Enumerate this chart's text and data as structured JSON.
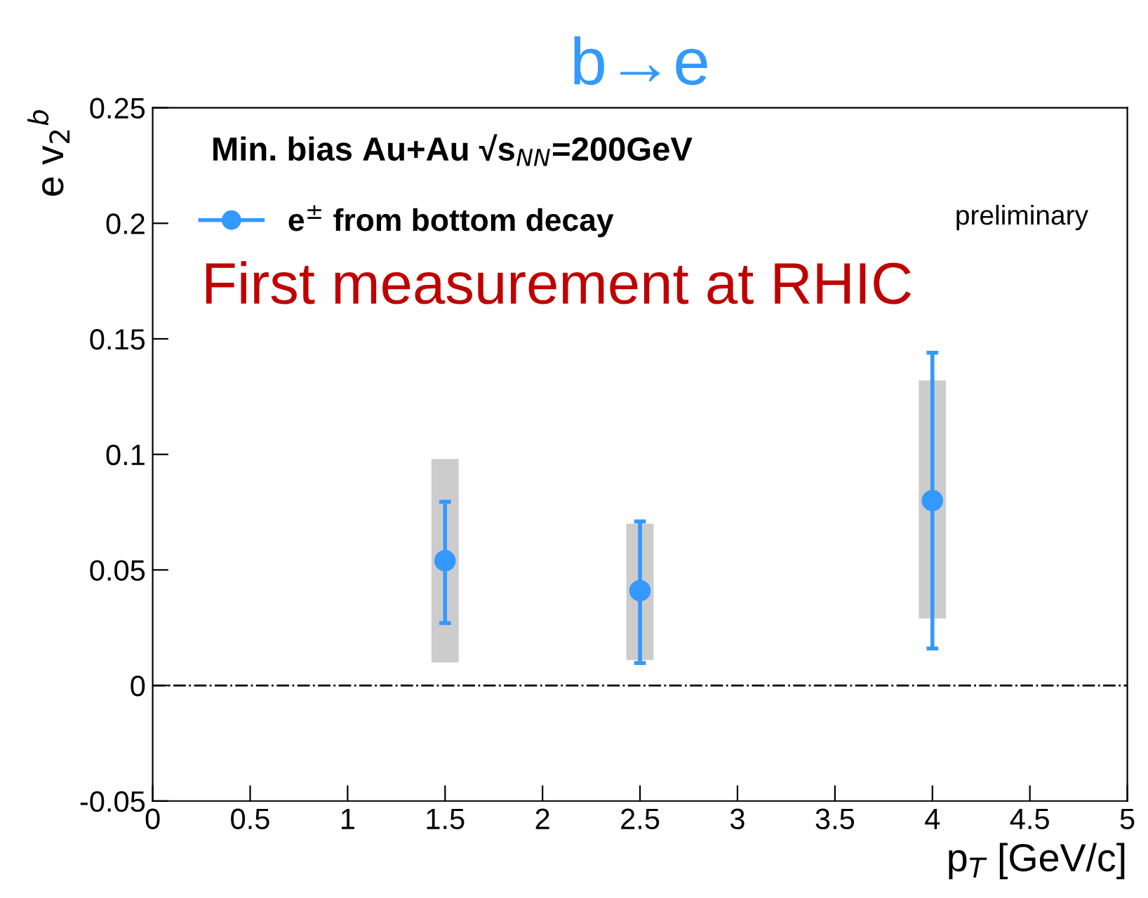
{
  "chart_data": {
    "type": "scatter",
    "title": "b→e",
    "xlabel": "p$_{T}$ [GeV/c]",
    "ylabel": "e v$_{2}$$^{b}$",
    "series": [
      {
        "type": "bar",
        "color": "#cccccc",
        "x": [
          1.5,
          2.5,
          4
        ],
        "base": [
          0.01,
          0.011,
          0.029
        ],
        "values": [
          0.088,
          0.059,
          0.103
        ]
      },
      {
        "name": "e$^{±}$ from bottom decay",
        "color": "#3399ff",
        "x": [
          1.5,
          2.5,
          4
        ],
        "values": [
          0.054,
          0.041,
          0.08
        ],
        "errors": [
          [
            0.027,
            0.0795
          ],
          [
            0.0097,
            0.071
          ],
          [
            0.016,
            0.144
          ]
        ]
      }
    ],
    "xlim": [
      0,
      5
    ],
    "xticks": [
      0,
      0.5,
      1,
      1.5,
      2,
      2.5,
      3,
      3.5,
      4,
      4.5,
      5
    ],
    "ylim": [
      -0.05,
      0.25
    ],
    "yticks": [
      -0.05,
      0,
      0.05,
      0.1,
      0.15,
      0.2,
      0.25
    ],
    "ref_lines": [
      {
        "axis": "y",
        "value": 0,
        "line_style": "dashdot",
        "color": "#000000"
      }
    ],
    "annotations": [
      "Min. bias Au+Au √s$_{NN}$=200GeV",
      "First measurement at RHIC",
      "preliminary"
    ],
    "legend": "top left",
    "marker": "circle",
    "grid": false
  }
}
